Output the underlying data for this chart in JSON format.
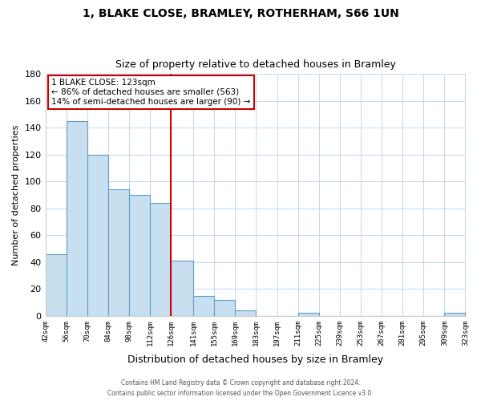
{
  "title1": "1, BLAKE CLOSE, BRAMLEY, ROTHERHAM, S66 1UN",
  "title2": "Size of property relative to detached houses in Bramley",
  "xlabel": "Distribution of detached houses by size in Bramley",
  "ylabel": "Number of detached properties",
  "bar_color": "#c8dff0",
  "bar_edge_color": "#5b9ec9",
  "bins": [
    42,
    56,
    70,
    84,
    98,
    112,
    126,
    141,
    155,
    169,
    183,
    197,
    211,
    225,
    239,
    253,
    267,
    281,
    295,
    309,
    323
  ],
  "counts": [
    46,
    145,
    120,
    94,
    90,
    84,
    41,
    15,
    12,
    4,
    0,
    0,
    2,
    0,
    0,
    0,
    0,
    0,
    0,
    2
  ],
  "tick_labels": [
    "42sqm",
    "56sqm",
    "70sqm",
    "84sqm",
    "98sqm",
    "112sqm",
    "126sqm",
    "141sqm",
    "155sqm",
    "169sqm",
    "183sqm",
    "197sqm",
    "211sqm",
    "225sqm",
    "239sqm",
    "253sqm",
    "267sqm",
    "281sqm",
    "295sqm",
    "309sqm",
    "323sqm"
  ],
  "property_line_x": 126,
  "property_line_color": "#cc0000",
  "annotation_line1": "1 BLAKE CLOSE: 123sqm",
  "annotation_line2": "← 86% of detached houses are smaller (563)",
  "annotation_line3": "14% of semi-detached houses are larger (90) →",
  "ylim": [
    0,
    180
  ],
  "yticks": [
    0,
    20,
    40,
    60,
    80,
    100,
    120,
    140,
    160,
    180
  ],
  "footer1": "Contains HM Land Registry data © Crown copyright and database right 2024.",
  "footer2": "Contains public sector information licensed under the Open Government Licence v3.0."
}
